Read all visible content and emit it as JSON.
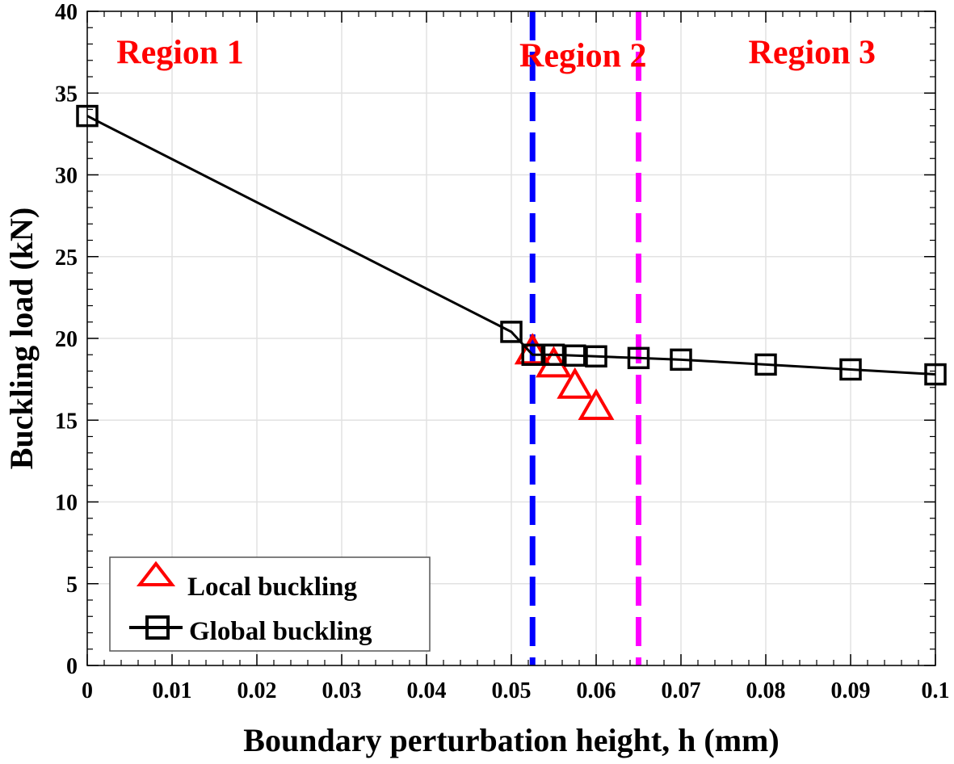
{
  "chart_data": {
    "type": "line",
    "title": "",
    "xlabel": "Boundary perturbation height, h (mm)",
    "ylabel": "Buckling load (kN)",
    "xlim": [
      0,
      0.1
    ],
    "ylim": [
      0,
      40
    ],
    "xticks": [
      "0",
      "0.01",
      "0.02",
      "0.03",
      "0.04",
      "0.05",
      "0.06",
      "0.07",
      "0.08",
      "0.09",
      "0.1"
    ],
    "yticks": [
      "0",
      "5",
      "10",
      "15",
      "20",
      "25",
      "30",
      "35",
      "40"
    ],
    "grid": true,
    "legend_position": "bottom-left",
    "series": [
      {
        "name": "Local buckling",
        "marker": "triangle",
        "line": false,
        "color": "#ff0000",
        "x": [
          0.0525,
          0.055,
          0.0575,
          0.06
        ],
        "y": [
          19.2,
          18.4,
          17.1,
          15.8
        ]
      },
      {
        "name": "Global buckling",
        "marker": "square",
        "line": true,
        "color": "#000000",
        "x": [
          0,
          0.05,
          0.0525,
          0.055,
          0.0575,
          0.06,
          0.065,
          0.07,
          0.08,
          0.09,
          0.1
        ],
        "y": [
          33.6,
          20.4,
          19.0,
          19.0,
          18.95,
          18.9,
          18.8,
          18.7,
          18.4,
          18.1,
          17.8
        ]
      }
    ],
    "vlines": [
      {
        "x": 0.0525,
        "color": "#0000ff",
        "style": "dashed"
      },
      {
        "x": 0.065,
        "color": "#ff00ff",
        "style": "dashed"
      }
    ],
    "annotations": [
      {
        "text": "Region 1",
        "x": 0.01,
        "y": 37.5,
        "color": "#ff0000"
      },
      {
        "text": "Region 2",
        "x": 0.0575,
        "y": 37.3,
        "color": "#ff0000"
      },
      {
        "text": "Region 3",
        "x": 0.0845,
        "y": 37.5,
        "color": "#ff0000"
      }
    ]
  }
}
